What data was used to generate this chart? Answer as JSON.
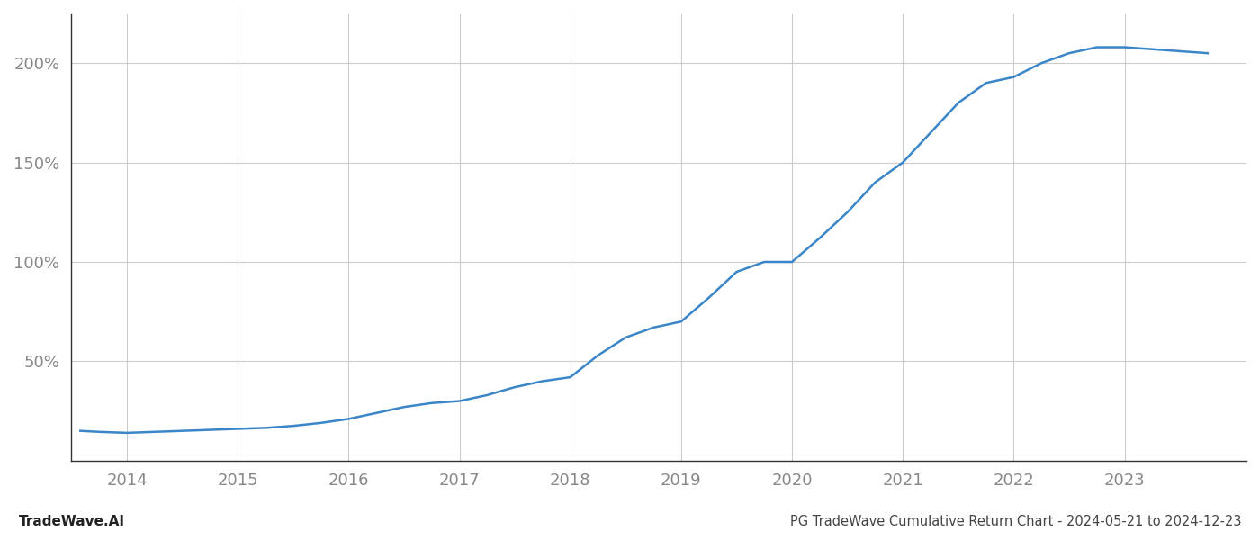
{
  "title": "PG TradeWave Cumulative Return Chart - 2024-05-21 to 2024-12-23",
  "watermark": "TradeWave.AI",
  "line_color": "#3a86c8",
  "background_color": "#ffffff",
  "grid_color": "#cccccc",
  "x_years": [
    2014,
    2015,
    2016,
    2017,
    2018,
    2019,
    2020,
    2021,
    2022,
    2023
  ],
  "x_values": [
    2013.58,
    2013.75,
    2014.0,
    2014.25,
    2014.5,
    2014.75,
    2015.0,
    2015.25,
    2015.5,
    2015.75,
    2016.0,
    2016.25,
    2016.5,
    2016.75,
    2017.0,
    2017.25,
    2017.5,
    2017.75,
    2018.0,
    2018.25,
    2018.5,
    2018.75,
    2019.0,
    2019.25,
    2019.5,
    2019.75,
    2020.0,
    2020.25,
    2020.5,
    2020.75,
    2021.0,
    2021.25,
    2021.5,
    2021.75,
    2022.0,
    2022.25,
    2022.5,
    2022.75,
    2023.0,
    2023.25,
    2023.5,
    2023.75
  ],
  "y_values": [
    15,
    14.5,
    14,
    14.5,
    15,
    15.5,
    16,
    16.5,
    17.5,
    19,
    21,
    24,
    27,
    29,
    30,
    33,
    37,
    40,
    42,
    53,
    62,
    67,
    70,
    82,
    95,
    100,
    100,
    112,
    125,
    140,
    150,
    165,
    180,
    190,
    193,
    200,
    205,
    208,
    208,
    207,
    206,
    205
  ],
  "yticks": [
    50,
    100,
    150,
    200
  ],
  "ytick_labels": [
    "50%",
    "100%",
    "150%",
    "200%"
  ],
  "ylim": [
    0,
    225
  ],
  "xlim": [
    2013.5,
    2024.1
  ],
  "title_fontsize": 10.5,
  "watermark_fontsize": 11,
  "tick_fontsize": 13,
  "tick_color": "#888888",
  "title_color": "#444444",
  "watermark_color": "#222222",
  "spine_color": "#333333",
  "line_width": 1.8
}
